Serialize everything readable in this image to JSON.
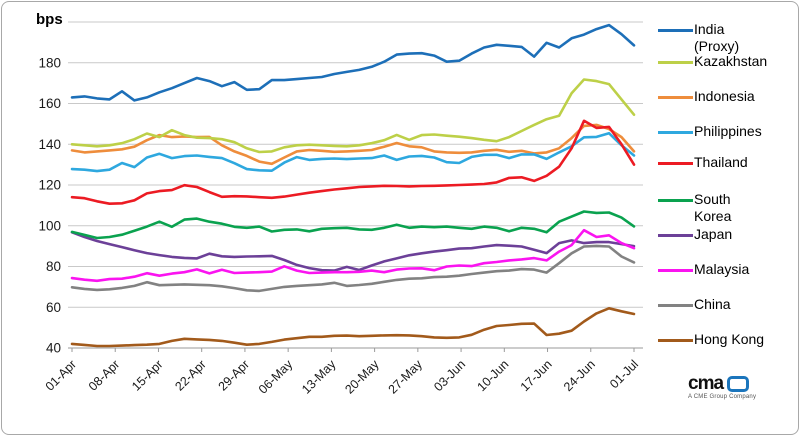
{
  "header": {
    "y_axis_unit_label": "bps"
  },
  "legend": {
    "items": [
      {
        "label": "India\n(Proxy)",
        "color": "#1d6fb8"
      },
      {
        "label": "Kazakhstan",
        "color": "#bdd048"
      },
      {
        "label": "Indonesia",
        "color": "#ee8d3c"
      },
      {
        "label": "Philippines",
        "color": "#2ea8df"
      },
      {
        "label": "Thailand",
        "color": "#ec1b23"
      },
      {
        "label": "South\nKorea",
        "color": "#0aa24f"
      },
      {
        "label": "Japan",
        "color": "#6c4098"
      },
      {
        "label": "Malaysia",
        "color": "#fa14f0"
      },
      {
        "label": "China",
        "color": "#828282"
      },
      {
        "label": "Hong Kong",
        "color": "#a25a1b"
      }
    ]
  },
  "logo": {
    "text": "cma",
    "tagline": "A CME Group Company"
  },
  "chart_data": {
    "type": "line",
    "title": "",
    "xlabel": "",
    "ylabel": "bps",
    "ylim": [
      40,
      200
    ],
    "y_gridline_step": 20,
    "grid": true,
    "legend_position": "right",
    "y_tick_labels": [
      "180",
      "160",
      "140",
      "120",
      "100",
      "80",
      "60",
      "40"
    ],
    "x_tick_labels": [
      "01-Apr",
      "08-Apr",
      "15-Apr",
      "22-Apr",
      "29-Apr",
      "06-May",
      "13-May",
      "20-May",
      "27-May",
      "03-Jun",
      "10-Jun",
      "17-Jun",
      "24-Jun",
      "01-Jul"
    ],
    "series": [
      {
        "name": "India (Proxy)",
        "color": "#1d6fb8",
        "values": [
          163,
          163.5,
          162.5,
          162,
          166,
          161.5,
          163,
          165.5,
          167.5,
          170,
          172.5,
          171,
          168.5,
          170.5,
          166.7,
          167,
          171.5,
          171.5,
          172,
          172.5,
          173,
          174.5,
          175.5,
          176.5,
          178,
          180.5,
          184,
          184.5,
          184.7,
          183.5,
          180.5,
          181,
          184.5,
          187.5,
          188.8,
          188.3,
          187.8,
          183,
          189.8,
          187.5,
          192,
          193.8,
          196.5,
          198.5,
          194,
          188.5
        ]
      },
      {
        "name": "Kazakhstan",
        "color": "#bdd048",
        "values": [
          140,
          139.5,
          139,
          139.5,
          140.5,
          142.5,
          145.3,
          143.5,
          146.9,
          144.5,
          143.2,
          143,
          142.5,
          141,
          138,
          136.2,
          136.5,
          138.5,
          139.5,
          139.8,
          139.5,
          139.2,
          139,
          139.5,
          140.5,
          142,
          144.6,
          142.2,
          144.5,
          144.8,
          144.2,
          143.7,
          143,
          142.2,
          141.5,
          143.5,
          146.5,
          149.5,
          152.3,
          154,
          165,
          171.8,
          171,
          169.5,
          162,
          154.5
        ]
      },
      {
        "name": "Indonesia",
        "color": "#ee8d3c",
        "values": [
          137,
          136,
          136.5,
          137,
          137.5,
          138.8,
          142,
          144.5,
          143.5,
          143.8,
          143.5,
          143.6,
          139.5,
          136.5,
          134.3,
          131.5,
          130.4,
          133.5,
          136.5,
          137.2,
          136.8,
          136.3,
          136.5,
          136.8,
          137.2,
          138.8,
          140.6,
          139,
          138.5,
          136.5,
          136,
          135.8,
          136,
          136.8,
          137.3,
          136.3,
          136.8,
          135.5,
          136,
          138,
          143,
          149,
          149.5,
          147.5,
          143.5,
          136.5
        ]
      },
      {
        "name": "Philippines",
        "color": "#2ea8df",
        "values": [
          127.8,
          127.5,
          126.8,
          127.5,
          130.8,
          128.8,
          133.5,
          135.3,
          133.2,
          134.2,
          134.5,
          133.8,
          133.2,
          130.7,
          127.8,
          127.2,
          127,
          131,
          133.7,
          132.3,
          132.8,
          133,
          132.7,
          133,
          133.2,
          134.5,
          132.3,
          134,
          134.3,
          133.5,
          131.2,
          130.8,
          133.8,
          134.8,
          134.8,
          133.2,
          135,
          135,
          132.8,
          136,
          139,
          143.4,
          143.6,
          145.4,
          139.5,
          134.5
        ]
      },
      {
        "name": "Thailand",
        "color": "#ec1b23",
        "values": [
          114,
          113.5,
          112,
          110.8,
          111,
          112.5,
          115.9,
          117,
          117.5,
          119.9,
          119,
          116.5,
          114.2,
          114.5,
          114.4,
          114,
          113.7,
          114.3,
          115.3,
          116.2,
          117,
          117.8,
          118.4,
          119,
          119.3,
          119.6,
          119.5,
          119.3,
          119.5,
          119.6,
          119.8,
          120,
          120.2,
          120.5,
          121.3,
          123.5,
          123.8,
          122,
          124.5,
          129,
          138,
          151.5,
          148,
          148.5,
          140,
          130
        ]
      },
      {
        "name": "South Korea",
        "color": "#0aa24f",
        "values": [
          97,
          95.5,
          94,
          94.5,
          95.6,
          97.5,
          99.6,
          102,
          99.5,
          103,
          103.5,
          102,
          101,
          99.5,
          99,
          99.6,
          97.2,
          98,
          98.2,
          97.3,
          98.5,
          98.8,
          99,
          98.2,
          98,
          99,
          100.5,
          99,
          99.6,
          99.3,
          99.6,
          99,
          98.5,
          99.6,
          99,
          97.3,
          99,
          98.5,
          96.8,
          102,
          104.5,
          107,
          106.3,
          106.5,
          104,
          99.7
        ]
      },
      {
        "name": "Japan",
        "color": "#6c4098",
        "values": [
          96.8,
          94.5,
          92.5,
          91,
          89.5,
          88,
          86.6,
          85.6,
          84.7,
          84.2,
          84,
          86.3,
          85,
          84.7,
          84.9,
          85,
          85.2,
          83.2,
          80.8,
          79.2,
          78.2,
          78,
          79.8,
          78.3,
          80.5,
          82.5,
          84,
          85.5,
          86.5,
          87.3,
          88,
          88.8,
          89,
          89.8,
          90.5,
          90.2,
          89.8,
          88.2,
          86.6,
          91.5,
          92.8,
          91.5,
          92,
          92,
          91,
          90
        ]
      },
      {
        "name": "Malaysia",
        "color": "#fa14f0",
        "values": [
          74.3,
          73.5,
          73,
          73.8,
          74,
          75,
          76.7,
          75.5,
          76.5,
          77.2,
          78.6,
          76.6,
          78.4,
          76.8,
          77,
          77.2,
          77.5,
          80.1,
          78,
          76.8,
          77,
          77.2,
          77.2,
          77.4,
          78,
          77.2,
          78.5,
          79,
          79.1,
          78.2,
          80,
          80.5,
          80.2,
          81.6,
          82.2,
          83,
          83.5,
          84.1,
          83,
          87.3,
          90.5,
          97.8,
          94.5,
          95.3,
          91.5,
          89
        ]
      },
      {
        "name": "China",
        "color": "#828282",
        "values": [
          69.8,
          69,
          68.5,
          68.8,
          69.5,
          70.5,
          72.3,
          70.8,
          71,
          71.2,
          71,
          70.8,
          70.3,
          69.4,
          68.3,
          68,
          69,
          70,
          70.5,
          70.8,
          71.2,
          72,
          70.5,
          70.9,
          71.5,
          72.5,
          73.4,
          74,
          74.2,
          74.8,
          75,
          75.5,
          76.3,
          77,
          77.7,
          78,
          78.7,
          78.5,
          77,
          81.6,
          86.5,
          89.8,
          90.1,
          89.8,
          84.9,
          82
        ]
      },
      {
        "name": "Hong Kong",
        "color": "#a25a1b",
        "values": [
          42,
          41.5,
          41,
          41,
          41.2,
          41.4,
          41.6,
          42,
          43.5,
          44.5,
          44.2,
          44,
          43.5,
          42.6,
          41.6,
          42,
          43,
          44.1,
          44.8,
          45.5,
          45.5,
          46,
          46.1,
          45.8,
          46,
          46.2,
          46.3,
          46.2,
          45.8,
          45.2,
          45,
          45.2,
          46.5,
          49,
          50.8,
          51.3,
          51.9,
          52,
          46.4,
          47,
          48.5,
          53,
          57,
          59.5,
          58,
          56.7
        ]
      }
    ]
  }
}
